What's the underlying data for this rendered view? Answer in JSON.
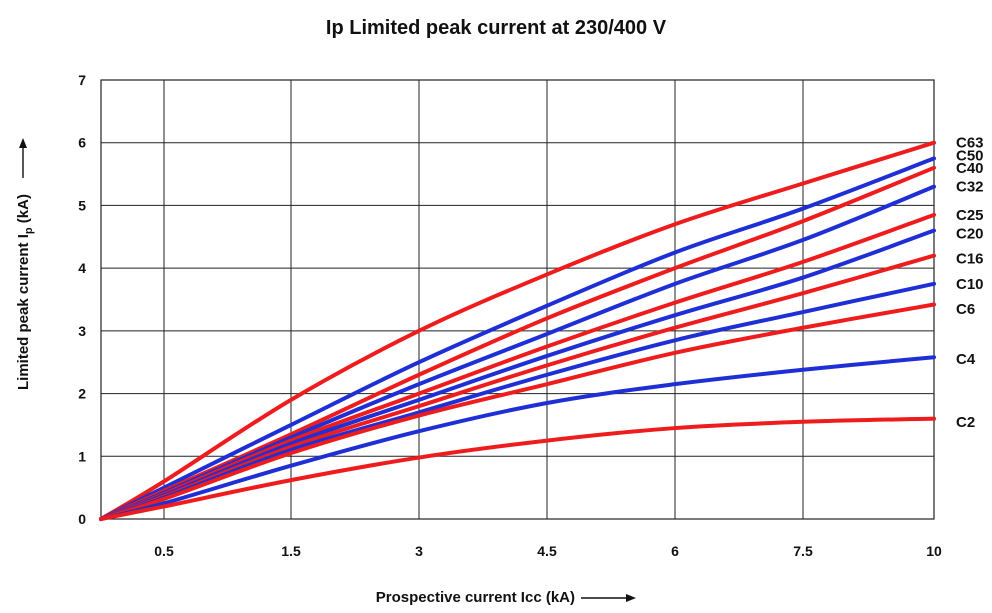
{
  "chart_data": {
    "type": "line",
    "title": "Ip Limited peak current at 230/400 V",
    "xlabel": "Prospective current Icc (kA)",
    "ylabel": "Limited peak current Ip (kA)",
    "ylabel_main": "Limited peak current I",
    "ylabel_sub": "p",
    "ylabel_tail": " (kA)",
    "x_ticks": [
      "0.5",
      "1.5",
      "3",
      "4.5",
      "6",
      "7.5",
      "10"
    ],
    "y_ticks": [
      "0",
      "1",
      "2",
      "3",
      "4",
      "5",
      "6",
      "7"
    ],
    "ylim": [
      0,
      7
    ],
    "grid": true,
    "colors": {
      "red": "#ee1c1c",
      "blue": "#1f2fd6"
    },
    "series": [
      {
        "name": "C63",
        "color": "red",
        "x": [
          0,
          0.5,
          1.5,
          3,
          4.5,
          6,
          7.5,
          10
        ],
        "y": [
          0,
          0.6,
          1.9,
          3.0,
          3.9,
          4.7,
          5.35,
          6.0
        ]
      },
      {
        "name": "C50",
        "color": "blue",
        "x": [
          0,
          0.5,
          1.5,
          3,
          4.5,
          6,
          7.5,
          10
        ],
        "y": [
          0,
          0.5,
          1.5,
          2.5,
          3.4,
          4.25,
          4.95,
          5.75
        ]
      },
      {
        "name": "C40",
        "color": "red",
        "x": [
          0,
          0.5,
          1.5,
          3,
          4.5,
          6,
          7.5,
          10
        ],
        "y": [
          0,
          0.45,
          1.35,
          2.3,
          3.2,
          4.0,
          4.75,
          5.6
        ]
      },
      {
        "name": "C32",
        "color": "blue",
        "x": [
          0,
          0.5,
          1.5,
          3,
          4.5,
          6,
          7.5,
          10
        ],
        "y": [
          0,
          0.42,
          1.3,
          2.15,
          2.95,
          3.75,
          4.45,
          5.3
        ]
      },
      {
        "name": "C25",
        "color": "red",
        "x": [
          0,
          0.5,
          1.5,
          3,
          4.5,
          6,
          7.5,
          10
        ],
        "y": [
          0,
          0.4,
          1.25,
          2.0,
          2.75,
          3.45,
          4.1,
          4.85
        ]
      },
      {
        "name": "C20",
        "color": "blue",
        "x": [
          0,
          0.5,
          1.5,
          3,
          4.5,
          6,
          7.5,
          10
        ],
        "y": [
          0,
          0.38,
          1.2,
          1.9,
          2.6,
          3.25,
          3.85,
          4.6
        ]
      },
      {
        "name": "C16",
        "color": "red",
        "x": [
          0,
          0.5,
          1.5,
          3,
          4.5,
          6,
          7.5,
          10
        ],
        "y": [
          0,
          0.36,
          1.15,
          1.8,
          2.45,
          3.05,
          3.6,
          4.2
        ]
      },
      {
        "name": "C10",
        "color": "blue",
        "x": [
          0,
          0.5,
          1.5,
          3,
          4.5,
          6,
          7.5,
          10
        ],
        "y": [
          0,
          0.34,
          1.1,
          1.7,
          2.3,
          2.85,
          3.3,
          3.75
        ]
      },
      {
        "name": "C6",
        "color": "red",
        "x": [
          0,
          0.5,
          1.5,
          3,
          4.5,
          6,
          7.5,
          10
        ],
        "y": [
          0,
          0.32,
          1.05,
          1.65,
          2.15,
          2.65,
          3.05,
          3.42
        ]
      },
      {
        "name": "C4",
        "color": "blue",
        "x": [
          0,
          0.5,
          1.5,
          3,
          4.5,
          6,
          7.5,
          10
        ],
        "y": [
          0,
          0.25,
          0.85,
          1.4,
          1.85,
          2.15,
          2.38,
          2.58
        ]
      },
      {
        "name": "C2",
        "color": "red",
        "x": [
          0,
          0.5,
          1.5,
          3,
          4.5,
          6,
          7.5,
          10
        ],
        "y": [
          0,
          0.2,
          0.62,
          0.98,
          1.25,
          1.45,
          1.55,
          1.6
        ]
      }
    ],
    "label_y": {
      "C63": 6.0,
      "C50": 5.8,
      "C40": 5.6,
      "C32": 5.3,
      "C25": 4.85,
      "C20": 4.55,
      "C16": 4.15,
      "C10": 3.75,
      "C6": 3.35,
      "C4": 2.55,
      "C2": 1.55
    }
  }
}
